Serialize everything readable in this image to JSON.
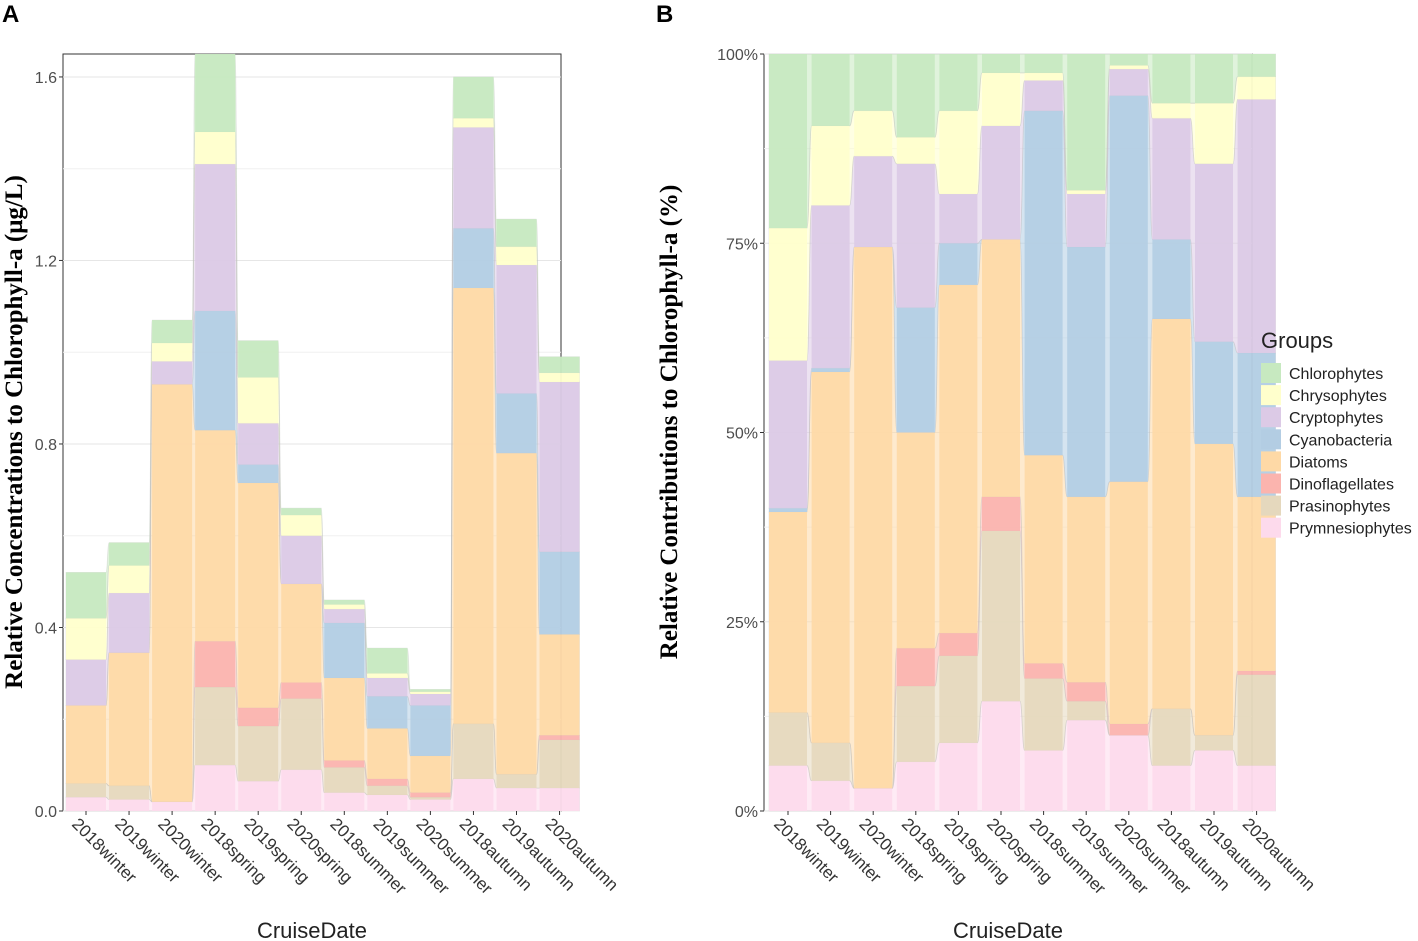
{
  "panels": [
    {
      "id": "A",
      "label": "A"
    },
    {
      "id": "B",
      "label": "B"
    }
  ],
  "legend": {
    "title": "Groups",
    "items": [
      "Chlorophytes",
      "Chrysophytes",
      "Cryptophytes",
      "Cyanobacteria",
      "Diatoms",
      "Dinoflagellates",
      "Prasinophytes",
      "Prymnesiophytes"
    ]
  },
  "colors": {
    "Chlorophytes": "#c7e9c0",
    "Chrysophytes": "#ffffcc",
    "Cryptophytes": "#dccae6",
    "Cyanobacteria": "#b3cde3",
    "Diatoms": "#fed9a6",
    "Dinoflagellates": "#fbb4ae",
    "Prasinophytes": "#e5d8bd",
    "Prymnesiophytes": "#fddaec"
  },
  "chart_data": [
    {
      "type": "area",
      "panel": "A",
      "title": "",
      "xlabel": "CruiseDate",
      "ylabel": "Relative Concentrations to Chlorophyll-a  (μg/L)",
      "ylim": [
        0,
        1.65
      ],
      "yticks": [
        0.0,
        0.4,
        0.8,
        1.2,
        1.6
      ],
      "ytick_labels": [
        "0.0",
        "0.4",
        "0.8",
        "1.2",
        "1.6"
      ],
      "grid": true,
      "categories": [
        "2018winter",
        "2019winter",
        "2020winter",
        "2018spring",
        "2019spring",
        "2020spring",
        "2018summer",
        "2019summer",
        "2020summer",
        "2018autumn",
        "2019autumn",
        "2020autumn"
      ],
      "series": [
        {
          "name": "Prymnesiophytes",
          "values": [
            0.03,
            0.025,
            0.02,
            0.1,
            0.065,
            0.09,
            0.04,
            0.035,
            0.025,
            0.07,
            0.05,
            0.05
          ]
        },
        {
          "name": "Prasinophytes",
          "values": [
            0.03,
            0.03,
            0.0,
            0.17,
            0.12,
            0.155,
            0.055,
            0.02,
            0.005,
            0.12,
            0.03,
            0.105
          ]
        },
        {
          "name": "Dinoflagellates",
          "values": [
            0.0,
            0.0,
            0.0,
            0.1,
            0.04,
            0.035,
            0.015,
            0.015,
            0.01,
            0.0,
            0.0,
            0.01
          ]
        },
        {
          "name": "Diatoms",
          "values": [
            0.17,
            0.29,
            0.91,
            0.46,
            0.49,
            0.215,
            0.18,
            0.11,
            0.08,
            0.95,
            0.7,
            0.22
          ]
        },
        {
          "name": "Cyanobacteria",
          "values": [
            0.0,
            0.0,
            0.0,
            0.26,
            0.04,
            0.0,
            0.12,
            0.07,
            0.11,
            0.13,
            0.13,
            0.18
          ]
        },
        {
          "name": "Cryptophytes",
          "values": [
            0.1,
            0.13,
            0.05,
            0.32,
            0.09,
            0.105,
            0.03,
            0.04,
            0.025,
            0.22,
            0.28,
            0.37
          ]
        },
        {
          "name": "Chrysophytes",
          "values": [
            0.09,
            0.06,
            0.04,
            0.07,
            0.1,
            0.045,
            0.01,
            0.01,
            0.005,
            0.02,
            0.04,
            0.02
          ]
        },
        {
          "name": "Chlorophytes",
          "values": [
            0.1,
            0.05,
            0.05,
            0.17,
            0.08,
            0.015,
            0.01,
            0.055,
            0.005,
            0.09,
            0.06,
            0.035
          ]
        }
      ]
    },
    {
      "type": "area",
      "panel": "B",
      "title": "",
      "xlabel": "CruiseDate",
      "ylabel": "Relative Contributions to Chlorophyll-a  (%)",
      "ylim": [
        0,
        100
      ],
      "yticks": [
        0,
        25,
        50,
        75,
        100
      ],
      "ytick_labels": [
        "0%",
        "25%",
        "50%",
        "75%",
        "100%"
      ],
      "grid": true,
      "categories": [
        "2018winter",
        "2019winter",
        "2020winter",
        "2018spring",
        "2019spring",
        "2020spring",
        "2018summer",
        "2019summer",
        "2020summer",
        "2018autumn",
        "2019autumn",
        "2020autumn"
      ],
      "series": [
        {
          "name": "Prymnesiophytes",
          "values": [
            6,
            4,
            3,
            6.5,
            9,
            14.5,
            8,
            12,
            10,
            6,
            8,
            6
          ]
        },
        {
          "name": "Prasinophytes",
          "values": [
            7,
            5,
            0,
            10,
            11.5,
            22.5,
            9.5,
            2.5,
            0,
            7.5,
            2,
            12
          ]
        },
        {
          "name": "Dinoflagellates",
          "values": [
            0,
            0,
            0,
            5,
            3,
            4.5,
            2,
            2.5,
            1.5,
            0,
            0,
            0.5
          ]
        },
        {
          "name": "Diatoms",
          "values": [
            26.5,
            49,
            71.5,
            28.5,
            46,
            34,
            27.5,
            24.5,
            32,
            51.5,
            38.5,
            23
          ]
        },
        {
          "name": "Cyanobacteria",
          "values": [
            0.5,
            0.5,
            0,
            16.5,
            5.5,
            0,
            45.5,
            33,
            51,
            10.5,
            13.5,
            19
          ]
        },
        {
          "name": "Cryptophytes",
          "values": [
            19.5,
            21.5,
            12,
            19,
            6.5,
            15,
            4,
            7,
            3.5,
            16,
            23.5,
            33.5
          ]
        },
        {
          "name": "Chrysophytes",
          "values": [
            17.5,
            10.5,
            6,
            3.5,
            11,
            7,
            1,
            0.5,
            0.5,
            2,
            8,
            3
          ]
        },
        {
          "name": "Chlorophytes",
          "values": [
            23,
            9.5,
            7.5,
            11,
            7.5,
            2.5,
            2.5,
            18,
            1.5,
            6.5,
            6.5,
            3
          ]
        }
      ]
    }
  ]
}
